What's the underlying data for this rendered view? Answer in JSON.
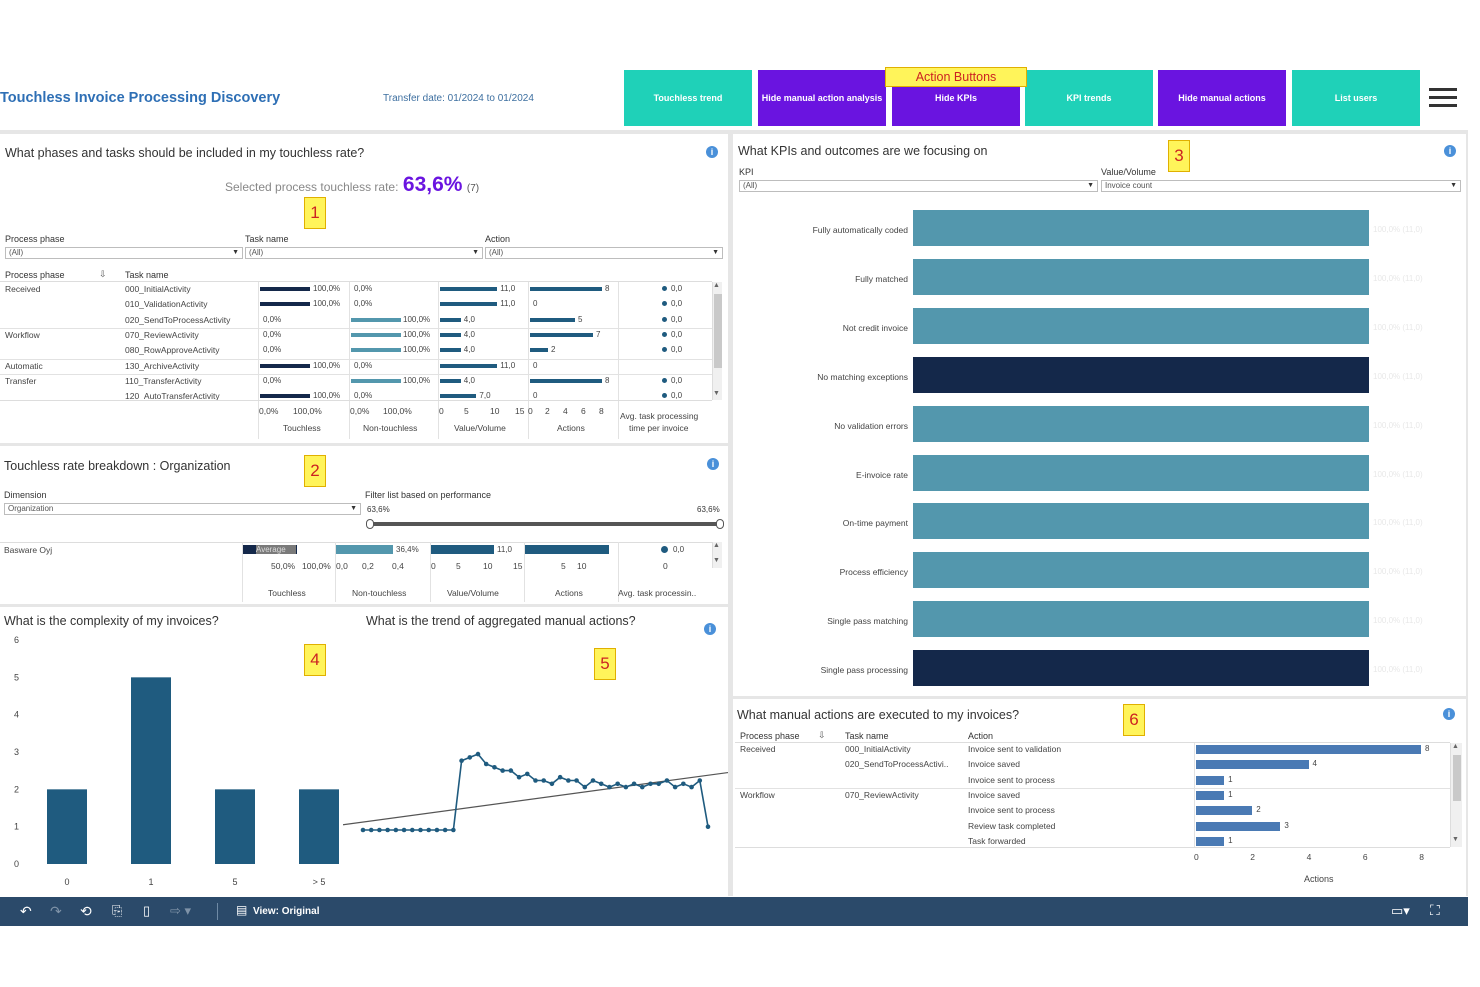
{
  "header": {
    "title": "Touchless Invoice Processing Discovery",
    "transfer_prefix": "Transfer date:",
    "transfer_from": "01/2024",
    "transfer_to_word": "to",
    "transfer_to": "01/2024",
    "action_buttons_label": "Action Buttons",
    "buttons": [
      {
        "label": "Touchless trend",
        "color": "#1fd1b8"
      },
      {
        "label": "Hide manual action analysis",
        "color": "#6a14e0"
      },
      {
        "label": "Hide KPIs",
        "color": "#6a14e0"
      },
      {
        "label": "KPI trends",
        "color": "#1fd1b8"
      },
      {
        "label": "Hide manual actions",
        "color": "#6a14e0"
      },
      {
        "label": "List users",
        "color": "#1fd1b8"
      }
    ]
  },
  "panel1": {
    "badge": "1",
    "title": "What phases and tasks should be included in my touchless rate?",
    "rate_label": "Selected process touchless rate:",
    "rate_value": "63,6%",
    "rate_count": "(7)",
    "filters": {
      "process_phase_label": "Process phase",
      "process_phase_value": "(All)",
      "task_name_label": "Task name",
      "task_name_value": "(All)",
      "action_label": "Action",
      "action_value": "(All)"
    },
    "col_phase": "Process phase",
    "col_task": "Task name",
    "rows": [
      {
        "phase": "Received",
        "task": "000_InitialActivity",
        "touchless": 1.0,
        "touchless_label": "100,0%",
        "non": 0,
        "non_label": "0,0%",
        "value": 11,
        "value_label": "11,0",
        "actions": 8,
        "actions_label": "8",
        "avg": "0,0"
      },
      {
        "phase": "",
        "task": "010_ValidationActivity",
        "touchless": 1.0,
        "touchless_label": "100,0%",
        "non": 0,
        "non_label": "0,0%",
        "value": 11,
        "value_label": "11,0",
        "actions": 0,
        "actions_label": "0",
        "avg": "0,0"
      },
      {
        "phase": "",
        "task": "020_SendToProcessActivity",
        "touchless": 0,
        "touchless_label": "0,0%",
        "non": 1.0,
        "non_label": "100,0%",
        "value": 4,
        "value_label": "4,0",
        "actions": 5,
        "actions_label": "5",
        "avg": "0,0"
      },
      {
        "phase": "Workflow",
        "task": "070_ReviewActivity",
        "touchless": 0,
        "touchless_label": "0,0%",
        "non": 1.0,
        "non_label": "100,0%",
        "value": 4,
        "value_label": "4,0",
        "actions": 7,
        "actions_label": "7",
        "avg": "0,0"
      },
      {
        "phase": "",
        "task": "080_RowApproveActivity",
        "touchless": 0,
        "touchless_label": "0,0%",
        "non": 1.0,
        "non_label": "100,0%",
        "value": 4,
        "value_label": "4,0",
        "actions": 2,
        "actions_label": "2",
        "avg": "0,0"
      },
      {
        "phase": "Automatic",
        "task": "130_ArchiveActivity",
        "touchless": 1.0,
        "touchless_label": "100,0%",
        "non": 0,
        "non_label": "0,0%",
        "value": 11,
        "value_label": "11,0",
        "actions": 0,
        "actions_label": "0",
        "avg": ""
      },
      {
        "phase": "Transfer",
        "task": "110_TransferActivity",
        "touchless": 0,
        "touchless_label": "0,0%",
        "non": 1.0,
        "non_label": "100,0%",
        "value": 4,
        "value_label": "4,0",
        "actions": 8,
        "actions_label": "8",
        "avg": "0,0"
      },
      {
        "phase": "",
        "task": "120_AutoTransferActivity",
        "touchless": 1.0,
        "touchless_label": "100,0%",
        "non": 0,
        "non_label": "0,0%",
        "value": 7,
        "value_label": "7,0",
        "actions": 0,
        "actions_label": "0",
        "avg": "0,0"
      }
    ],
    "axes": {
      "touchless_ticks": [
        "0,0%",
        "100,0%"
      ],
      "touchless_title": "Touchless",
      "non_ticks": [
        "0,0%",
        "100,0%"
      ],
      "non_title": "Non-touchless",
      "value_ticks": [
        "0",
        "5",
        "10",
        "15"
      ],
      "value_title": "Value/Volume",
      "actions_ticks": [
        "0",
        "2",
        "4",
        "6",
        "8"
      ],
      "actions_title": "Actions",
      "avg_title_1": "Avg. task processing",
      "avg_title_2": "time per invoice"
    }
  },
  "panel2": {
    "badge": "2",
    "title": "Touchless rate breakdown : Organization",
    "dimension_label": "Dimension",
    "dimension_value": "Organization",
    "filter_label": "Filter list based on performance",
    "slider_min": "63,6%",
    "slider_max": "63,6%",
    "row_name": "Basware Oyj",
    "average_label": "Average",
    "non_label": "36,4%",
    "value_label": "11,0",
    "avg_value": "0,0",
    "ticks_touchless": [
      "50,0%",
      "100,0%"
    ],
    "ticks_non": [
      "0,0",
      "0,2",
      "0,4"
    ],
    "ticks_value": [
      "0",
      "5",
      "10",
      "15"
    ],
    "ticks_actions": [
      "5",
      "10"
    ],
    "ticks_avg": [
      "0"
    ],
    "titles": [
      "Touchless",
      "Non-touchless",
      "Value/Volume",
      "Actions",
      "Avg. task processin.."
    ]
  },
  "panel3": {
    "badge": "3",
    "title": "What KPIs and outcomes are we focusing on",
    "kpi_label": "KPI",
    "kpi_value": "(All)",
    "value_volume_label": "Value/Volume",
    "value_volume_value": "Invoice count",
    "bar_label": "100,0% (11,0)",
    "kpis": [
      {
        "name": "Fully automatically coded",
        "color": "#5397ad"
      },
      {
        "name": "Fully matched",
        "color": "#5397ad"
      },
      {
        "name": "Not credit invoice",
        "color": "#5397ad"
      },
      {
        "name": "No matching exceptions",
        "color": "#14284a"
      },
      {
        "name": "No validation errors",
        "color": "#5397ad"
      },
      {
        "name": "E-invoice rate",
        "color": "#5397ad"
      },
      {
        "name": "On-time payment",
        "color": "#5397ad"
      },
      {
        "name": "Process efficiency",
        "color": "#5397ad"
      },
      {
        "name": "Single pass matching",
        "color": "#5397ad"
      },
      {
        "name": "Single pass processing",
        "color": "#14284a"
      }
    ]
  },
  "panel4": {
    "badge": "4",
    "title": "What is the complexity of my invoices?",
    "chart_data": {
      "type": "bar",
      "categories": [
        "0",
        "1",
        "5",
        "> 5"
      ],
      "values": [
        2,
        5,
        2,
        2
      ],
      "ylim": [
        0,
        6
      ],
      "yticks": [
        "0",
        "1",
        "2",
        "3",
        "4",
        "5",
        "6"
      ],
      "color": "#1f5b7f"
    }
  },
  "panel5": {
    "badge": "5",
    "title": "What is the trend of aggregated manual actions?",
    "chart_data": {
      "type": "line",
      "values": [
        1,
        1,
        1,
        1,
        1,
        1,
        1,
        1,
        1,
        1,
        1,
        1,
        3.1,
        3.2,
        3.3,
        3.0,
        2.9,
        2.8,
        2.8,
        2.6,
        2.7,
        2.5,
        2.5,
        2.4,
        2.6,
        2.5,
        2.5,
        2.3,
        2.5,
        2.4,
        2.3,
        2.4,
        2.3,
        2.4,
        2.3,
        2.4,
        2.4,
        2.5,
        2.3,
        2.4,
        2.3,
        2.5,
        1.1
      ],
      "trend": [
        1.25,
        2.65
      ],
      "color": "#1f5b7f"
    }
  },
  "panel6": {
    "badge": "6",
    "title": "What manual actions are executed to my invoices?",
    "col_phase": "Process phase",
    "col_task": "Task name",
    "col_action": "Action",
    "axis_title": "Actions",
    "ticks": [
      "0",
      "2",
      "4",
      "6",
      "8"
    ],
    "rows": [
      {
        "phase": "Received",
        "task": "000_InitialActivity",
        "action": "Invoice sent to validation",
        "value": 8
      },
      {
        "phase": "",
        "task": "020_SendToProcessActivi..",
        "action": "Invoice saved",
        "value": 4
      },
      {
        "phase": "",
        "task": "",
        "action": "Invoice sent to process",
        "value": 1
      },
      {
        "phase": "Workflow",
        "task": "070_ReviewActivity",
        "action": "Invoice saved",
        "value": 1
      },
      {
        "phase": "",
        "task": "",
        "action": "Invoice sent to process",
        "value": 2
      },
      {
        "phase": "",
        "task": "",
        "action": "Review task completed",
        "value": 3
      },
      {
        "phase": "",
        "task": "",
        "action": "Task forwarded",
        "value": 1
      }
    ]
  },
  "toolbar": {
    "view_label": "View: Original"
  },
  "colors": {
    "accent_purple": "#6a14e0",
    "teal": "#1fd1b8",
    "dark_navy": "#14284a",
    "bar_blue": "#2e6b8e",
    "title_blue": "#2e6fb5"
  }
}
